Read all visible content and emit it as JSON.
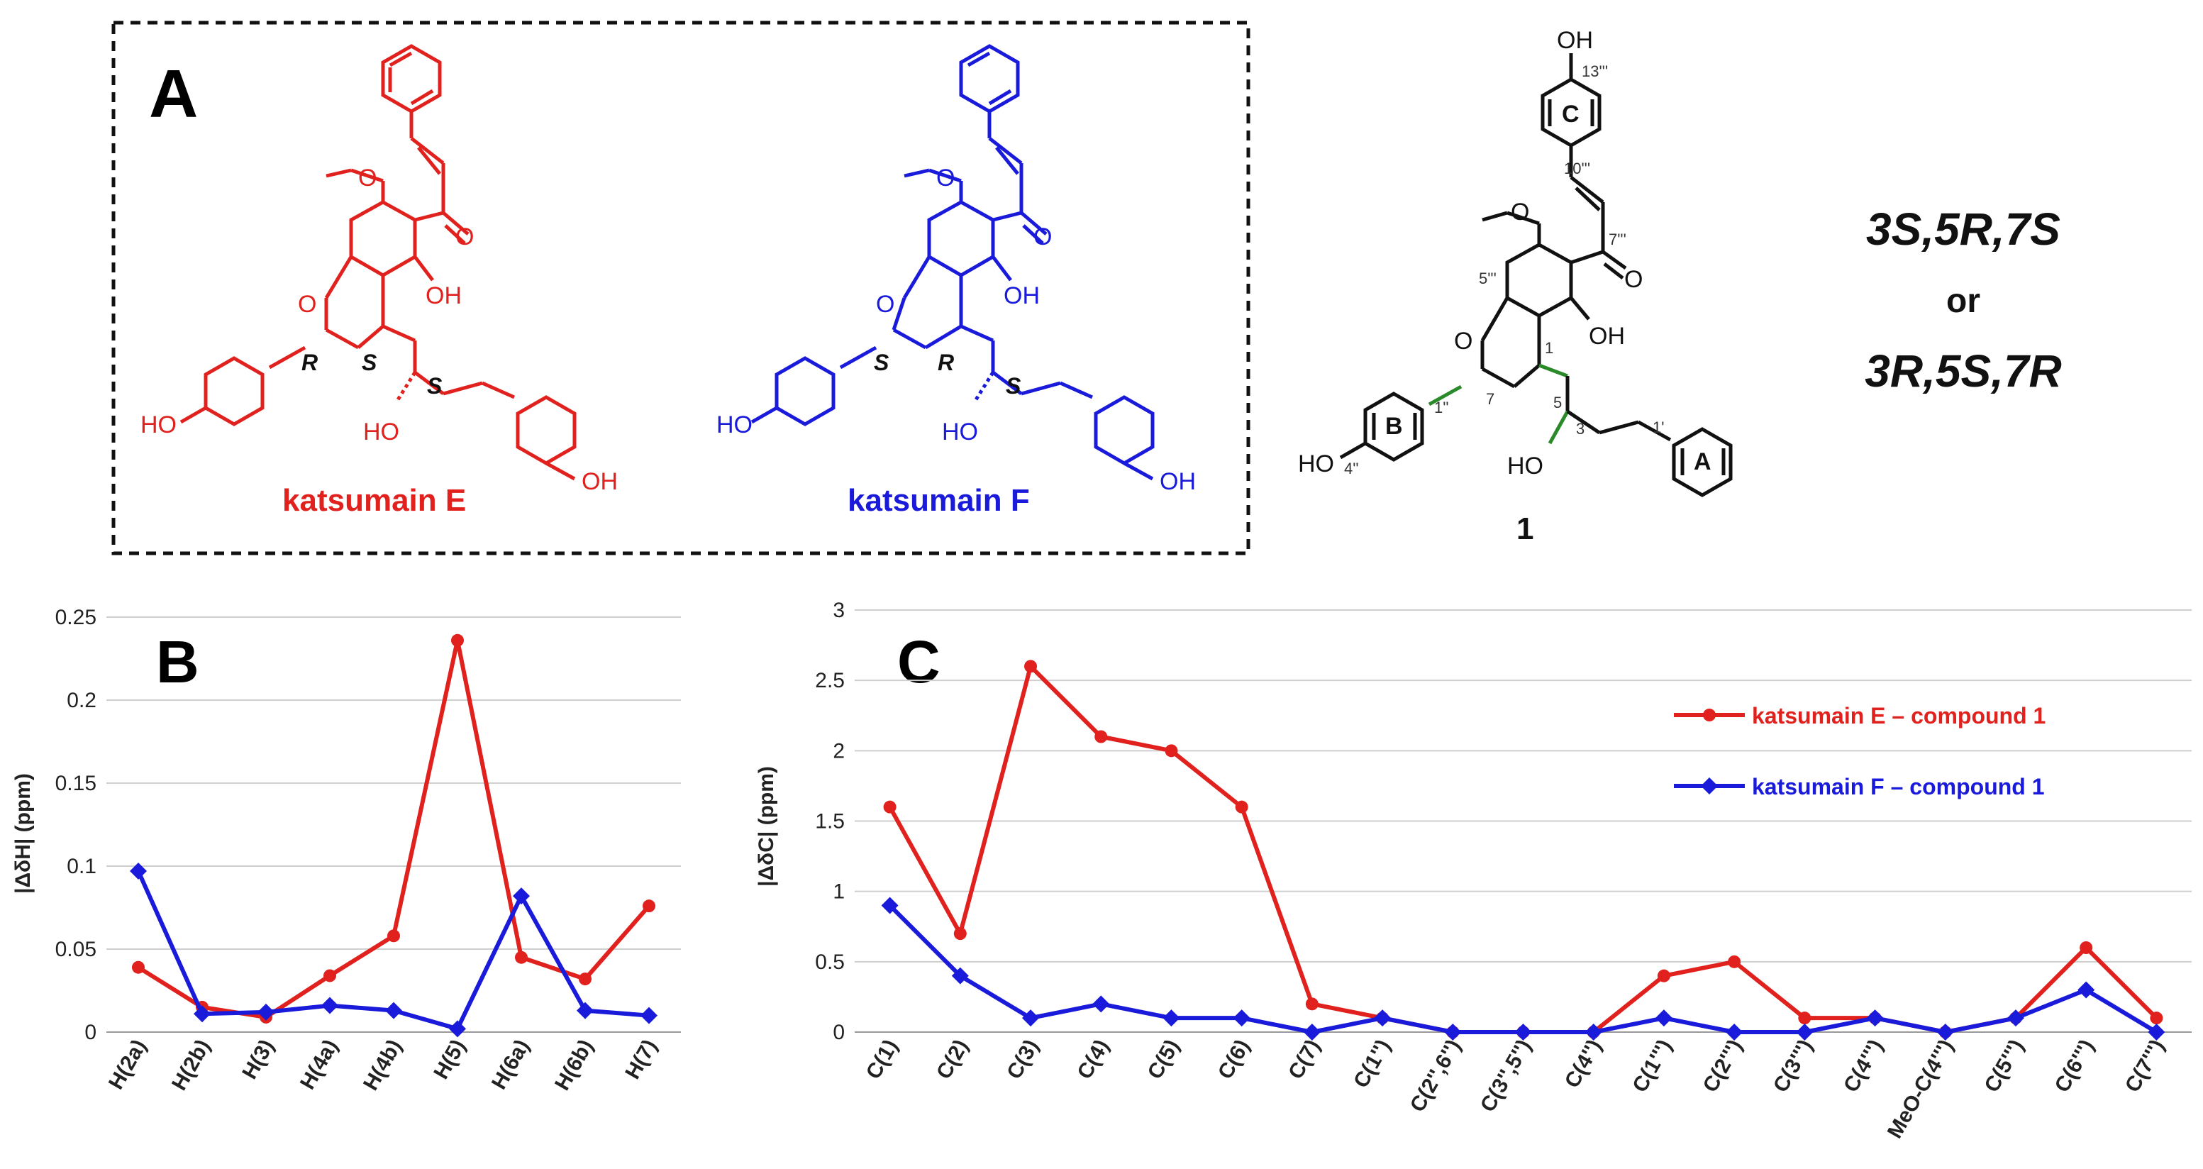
{
  "panel_a": {
    "label": "A",
    "compound_e": {
      "name": "katsumain E",
      "color": "#e0211d",
      "stereo_labels": [
        "R",
        "S",
        "S"
      ],
      "atoms": [
        "O",
        "O",
        "OH",
        "HO",
        "HO",
        "OH"
      ]
    },
    "compound_f": {
      "name": "katsumain F",
      "color": "#1a1adb",
      "stereo_labels": [
        "S",
        "R",
        "S"
      ],
      "atoms": [
        "O",
        "O",
        "OH",
        "HO",
        "HO",
        "OH"
      ]
    }
  },
  "compound_1": {
    "number": "1",
    "ring_labels": [
      "C",
      "B",
      "A"
    ],
    "atoms": [
      "OH",
      "O",
      "O",
      "OH",
      "HO",
      "HO"
    ],
    "locants": [
      "13'''",
      "10'''",
      "7'''",
      "5'''",
      "1",
      "7",
      "5",
      "1''",
      "3",
      "4''",
      "1'"
    ]
  },
  "config": {
    "line1": "3S,5R,7S",
    "line2": "or",
    "line3": "3R,5S,7R"
  },
  "chart_data": [
    {
      "type": "line",
      "panel_label": "B",
      "ylabel": "|ΔδH| (ppm)",
      "ylim": [
        0,
        0.25
      ],
      "yticks": [
        "0",
        "0.05",
        "0.1",
        "0.15",
        "0.2",
        "0.25"
      ],
      "categories": [
        "H(2a)",
        "H(2b)",
        "H(3)",
        "H(4a)",
        "H(4b)",
        "H(5)",
        "H(6a)",
        "H(6b)",
        "H(7)"
      ],
      "series": [
        {
          "name": "katsumain E – compound 1",
          "color": "#e0211d",
          "marker": "circle",
          "values": [
            0.039,
            0.015,
            0.009,
            0.034,
            0.058,
            0.236,
            0.045,
            0.032,
            0.076
          ]
        },
        {
          "name": "katsumain F – compound 1",
          "color": "#1a1adb",
          "marker": "diamond",
          "values": [
            0.097,
            0.011,
            0.012,
            0.016,
            0.013,
            0.002,
            0.082,
            0.013,
            0.01
          ]
        }
      ],
      "grid": true
    },
    {
      "type": "line",
      "panel_label": "C",
      "ylabel": "|ΔδC| (ppm)",
      "ylim": [
        0,
        3
      ],
      "yticks": [
        "0",
        "0.5",
        "1",
        "1.5",
        "2",
        "2.5",
        "3"
      ],
      "categories": [
        "C(1)",
        "C(2)",
        "C(3)",
        "C(4)",
        "C(5)",
        "C(6)",
        "C(7)",
        "C(1'')",
        "C(2'',6'')",
        "C(3'',5'')",
        "C(4'')",
        "C(1''')",
        "C(2''')",
        "C(3''')",
        "C(4''')",
        "MeO-C(4''')",
        "C(5''')",
        "C(6''')",
        "C(7''')"
      ],
      "series": [
        {
          "name": "katsumain E – compound 1",
          "color": "#e0211d",
          "marker": "circle",
          "values": [
            1.6,
            0.7,
            2.6,
            2.1,
            2.0,
            1.6,
            0.2,
            0.1,
            0.0,
            0.0,
            0.0,
            0.4,
            0.5,
            0.1,
            0.1,
            0.0,
            0.1,
            0.6,
            0.1
          ]
        },
        {
          "name": "katsumain F – compound 1",
          "color": "#1a1adb",
          "marker": "diamond",
          "values": [
            0.9,
            0.4,
            0.1,
            0.2,
            0.1,
            0.1,
            0.0,
            0.1,
            0.0,
            0.0,
            0.0,
            0.1,
            0.0,
            0.0,
            0.1,
            0.0,
            0.1,
            0.3,
            0.0
          ]
        }
      ],
      "legend": "top-right",
      "grid": true
    }
  ]
}
